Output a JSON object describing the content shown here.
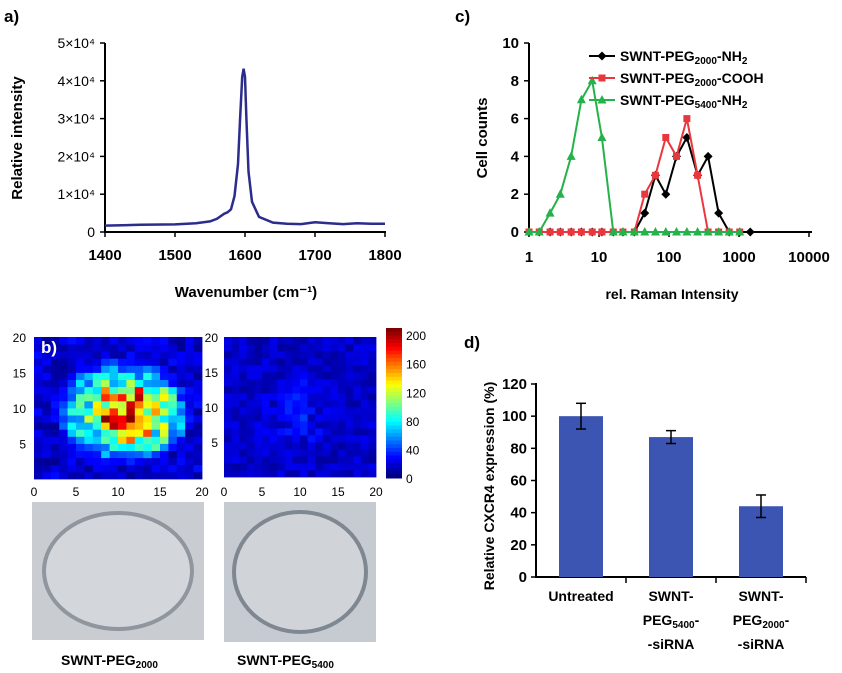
{
  "panels": {
    "a": {
      "label": "a)",
      "chart_data": {
        "type": "line",
        "xlabel": "Wavenumber (cm⁻¹)",
        "ylabel": "Relative intensity",
        "xlim": [
          1400,
          1800
        ],
        "ylim": [
          0,
          50000
        ],
        "xticks": [
          1400,
          1500,
          1600,
          1700,
          1800
        ],
        "yticks": [
          {
            "value": 0,
            "label": "0"
          },
          {
            "value": 10000,
            "label": "1×10⁴"
          },
          {
            "value": 20000,
            "label": "2×10⁴"
          },
          {
            "value": 30000,
            "label": "3×10⁴"
          },
          {
            "value": 40000,
            "label": "4×10⁴"
          },
          {
            "value": 50000,
            "label": "5×10⁴"
          }
        ],
        "line_color": "#2b2c8c",
        "series": [
          {
            "x": [
              1400,
              1450,
              1500,
              1530,
              1550,
              1560,
              1570,
              1575,
              1580,
              1585,
              1590,
              1593,
              1596,
              1598,
              1600,
              1602,
              1605,
              1610,
              1620,
              1640,
              1660,
              1680,
              1700,
              1720,
              1740,
              1760,
              1780,
              1800
            ],
            "y": [
              1700,
              1900,
              2000,
              2300,
              2800,
              3500,
              4800,
              5200,
              6000,
              9500,
              18000,
              30000,
              41000,
              43200,
              41000,
              30000,
              16000,
              8000,
              4000,
              2500,
              2200,
              2100,
              2600,
              2300,
              2100,
              2300,
              2200,
              2200
            ]
          }
        ]
      }
    },
    "b": {
      "label": "b)",
      "chart_data": {
        "type": "heatmap",
        "xlim": [
          0,
          20
        ],
        "ylim": [
          0,
          20
        ],
        "xticks": [
          0,
          5,
          10,
          15,
          20
        ],
        "yticks": [
          5,
          10,
          15,
          20
        ],
        "colorbar_ticks": [
          0,
          40,
          80,
          120,
          160,
          200
        ],
        "colorbar_range": [
          0,
          210
        ],
        "maps": [
          {
            "name": "SWNT-PEG₂₀₀₀",
            "kind": "high"
          },
          {
            "name": "SWNT-PEG₅₄₀₀",
            "kind": "low"
          }
        ]
      },
      "captions": {
        "left_main": "SWNT-PEG",
        "left_sub": "2000",
        "right_main": "SWNT-PEG",
        "right_sub": "5400"
      }
    },
    "c": {
      "label": "c)",
      "chart_data": {
        "type": "line",
        "xlabel": "rel. Raman Intensity",
        "ylabel": "Cell counts",
        "xscale": "log",
        "xlim": [
          1,
          10000
        ],
        "ylim": [
          0,
          10
        ],
        "xticks": [
          1,
          10,
          100,
          1000,
          10000
        ],
        "yticks": [
          0,
          2,
          4,
          6,
          8,
          10
        ],
        "series": [
          {
            "name_main": "SWNT-PEG",
            "name_sub": "2000",
            "name_tail": "-NH",
            "name_tail_sub": "2",
            "color": "#000000",
            "marker": "diamond",
            "x": [
              1,
              1.4,
              2,
              2.8,
              4,
              5.6,
              8,
              11,
              16,
              22,
              32,
              45,
              64,
              90,
              128,
              180,
              256,
              362,
              512,
              724,
              1024,
              1448
            ],
            "y": [
              0,
              0,
              0,
              0,
              0,
              0,
              0,
              0,
              0,
              0,
              0,
              1,
              3,
              2,
              4,
              5,
              3,
              4,
              1,
              0,
              0,
              0
            ]
          },
          {
            "name_main": "SWNT-PEG",
            "name_sub": "2000",
            "name_tail": "-COOH",
            "name_tail_sub": "",
            "color": "#e8383d",
            "marker": "square",
            "x": [
              1,
              1.4,
              2,
              2.8,
              4,
              5.6,
              8,
              11,
              16,
              22,
              32,
              45,
              64,
              90,
              128,
              180,
              256,
              362,
              512,
              724,
              1024
            ],
            "y": [
              0,
              0,
              0,
              0,
              0,
              0,
              0,
              0,
              0,
              0,
              0,
              2,
              3,
              5,
              4,
              6,
              3,
              0,
              0,
              0,
              0
            ]
          },
          {
            "name_main": "SWNT-PEG",
            "name_sub": "5400",
            "name_tail": "-NH",
            "name_tail_sub": "2",
            "color": "#25b24a",
            "marker": "triangle",
            "x": [
              1,
              1.4,
              2,
              2.8,
              4,
              5.6,
              8,
              11,
              16,
              22,
              32,
              45,
              64,
              90,
              128,
              180,
              256,
              362,
              512,
              724,
              1024
            ],
            "y": [
              0,
              0,
              1,
              2,
              4,
              7,
              8,
              5,
              0,
              0,
              0,
              0,
              0,
              0,
              0,
              0,
              0,
              0,
              0,
              0,
              0
            ]
          }
        ]
      }
    },
    "d": {
      "label": "d)",
      "chart_data": {
        "type": "bar",
        "ylabel": "Relative CXCR4 expression (%)",
        "ylim": [
          0,
          120
        ],
        "yticks": [
          0,
          20,
          40,
          60,
          80,
          100,
          120
        ],
        "bar_color": "#3d55b2",
        "values": [
          100,
          87,
          44
        ],
        "errors": [
          8,
          4,
          7
        ],
        "categories": [
          {
            "line1": "Untreated",
            "line2_main": "",
            "line2_sub": "",
            "line3": ""
          },
          {
            "line1": "SWNT-",
            "line2_main": "PEG",
            "line2_sub": "5400",
            "line2_tail": "-",
            "line3": "-siRNA"
          },
          {
            "line1": "SWNT-",
            "line2_main": "PEG",
            "line2_sub": "2000",
            "line2_tail": "-",
            "line3": "-siRNA"
          }
        ]
      }
    }
  }
}
